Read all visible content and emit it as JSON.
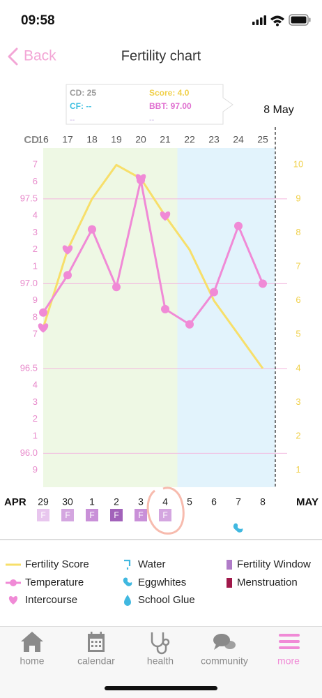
{
  "status_bar": {
    "time": "09:58"
  },
  "nav": {
    "back": "Back",
    "title": "Fertility chart"
  },
  "tooltip": {
    "cd": "CD: 25",
    "score": "Score: 4.0",
    "cf": "CF: --",
    "bbt": "BBT: 97.00",
    "cf_detail": "--",
    "bbt_detail": "--"
  },
  "chart_data": {
    "type": "line",
    "x_label": "CD",
    "categories": [
      "16",
      "17",
      "18",
      "19",
      "20",
      "21",
      "22",
      "23",
      "24",
      "25"
    ],
    "today_label": "8 May",
    "series": [
      {
        "name": "Fertility Score",
        "color": "#f7df6a",
        "axis": "y2",
        "values": [
          5.2,
          7.5,
          9,
          10,
          9.6,
          8.5,
          7.5,
          6,
          5,
          4
        ]
      },
      {
        "name": "Temperature",
        "color": "#f08ad6",
        "values": [
          96.83,
          97.05,
          97.32,
          96.98,
          97.61,
          96.85,
          96.76,
          96.95,
          97.34,
          97.0
        ]
      }
    ],
    "intercourse": {
      "name": "Intercourse",
      "color": "#f08ad6",
      "days": [
        true,
        true,
        false,
        false,
        true,
        true,
        false,
        false,
        false,
        false
      ]
    },
    "phase_colors": [
      "#eef8e4",
      "#eef8e4",
      "#eef8e4",
      "#eef8e4",
      "#eef8e4",
      "#eef8e4",
      "#e2f3fc",
      "#e2f3fc",
      "#e2f3fc",
      "#e2f3fc"
    ],
    "ylim": [
      95.8,
      97.8
    ],
    "yticks": [
      {
        "value": 97.7,
        "label": "7"
      },
      {
        "value": 97.6,
        "label": "6"
      },
      97.5,
      {
        "value": 97.4,
        "label": "4"
      },
      {
        "value": 97.3,
        "label": "3"
      },
      {
        "value": 97.2,
        "label": "2"
      },
      {
        "value": 97.1,
        "label": "1"
      },
      {
        "value": 97,
        "label": "97.0"
      },
      {
        "value": 96.9,
        "label": "9"
      },
      {
        "value": 96.8,
        "label": "8"
      },
      {
        "value": 96.7,
        "label": "7"
      },
      96.5,
      {
        "value": 96.4,
        "label": "4"
      },
      {
        "value": 96.3,
        "label": "3"
      },
      {
        "value": 96.2,
        "label": "2"
      },
      {
        "value": 96.1,
        "label": "1"
      },
      {
        "value": 96,
        "label": "96.0"
      },
      {
        "value": 95.9,
        "label": "9"
      }
    ],
    "ygrid": [
      97.5,
      97,
      96.5,
      96
    ],
    "y2lim": [
      0.5,
      10.5
    ],
    "y2ticks": [
      10,
      9,
      8,
      7,
      6,
      5,
      4,
      3,
      2,
      1
    ],
    "ytick_color": "#e88ccc",
    "y2tick_color": "#f0d04a"
  },
  "calendar": {
    "start_month": "APR",
    "end_month": "MAY",
    "dates": [
      "29",
      "30",
      "1",
      "2",
      "3",
      "4",
      "5",
      "6",
      "7",
      "8"
    ],
    "fertility": [
      {
        "label": "F",
        "color": "#e8c6ee"
      },
      {
        "label": "F",
        "color": "#d4a6e0"
      },
      {
        "label": "F",
        "color": "#c990d8"
      },
      {
        "label": "F",
        "color": "#a262ba"
      },
      {
        "label": "F",
        "color": "#c990d8"
      },
      {
        "label": "F",
        "color": "#d4a6e0"
      },
      null,
      null,
      null,
      null
    ],
    "eggwhites": [
      false,
      false,
      false,
      false,
      false,
      false,
      false,
      false,
      true,
      false
    ],
    "eggwhites_color": "#40b8e0"
  },
  "legend": {
    "items": [
      {
        "name": "Water",
        "color": "#40b8e0"
      },
      {
        "name": "Eggwhites",
        "color": "#40b8e0"
      },
      {
        "name": "School Glue",
        "color": "#40b8e0"
      },
      {
        "name": "Fertility Window",
        "color": "#b07cc8"
      },
      {
        "name": "Menstruation",
        "color": "#a0184a"
      }
    ]
  },
  "tabs": [
    {
      "label": "home"
    },
    {
      "label": "calendar"
    },
    {
      "label": "health"
    },
    {
      "label": "community"
    },
    {
      "label": "more",
      "active": true
    }
  ],
  "tab_colors": {
    "default": "#8a8a8a",
    "active": "#f08ad6"
  }
}
